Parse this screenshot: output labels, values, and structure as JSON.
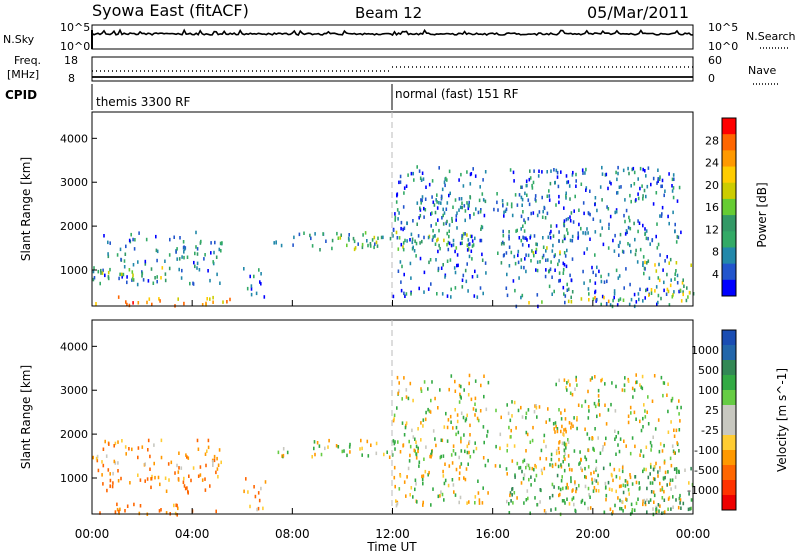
{
  "header": {
    "title": "Syowa East (fitACF)",
    "beam": "Beam 12",
    "date": "05/Mar/2011"
  },
  "status_panels": {
    "nsky_label": "N.Sky",
    "nsearch_label": "N.Search",
    "freq_label_line1": "Freq.",
    "freq_label_line2": "[MHz]",
    "nave_label": "Nave",
    "cpid_label": "CPID",
    "noise_ticks_left": [
      "10^5",
      "10^0"
    ],
    "noise_ticks_right": [
      "10^5",
      "10^0"
    ],
    "freq_ticks": [
      "18",
      "8"
    ],
    "nave_ticks": [
      "60",
      "0"
    ],
    "cpid_segments": [
      {
        "label": "themis 3300 RF",
        "start_hour": 0
      },
      {
        "label": "normal (fast) 151 RF",
        "start_hour": 12.0
      }
    ]
  },
  "x_axis": {
    "label": "Time UT",
    "ticks": [
      "00:00",
      "04:00",
      "08:00",
      "12:00",
      "16:00",
      "20:00",
      "00:00"
    ]
  },
  "chart_data": [
    {
      "type": "heatmap",
      "name": "power",
      "ylabel": "Slant Range [km]",
      "yticks": [
        1000,
        2000,
        3000,
        4000
      ],
      "ylim": [
        180,
        4600
      ],
      "xlim_hours": [
        0,
        24
      ],
      "colorbar_label": "Power [dB]",
      "colorbar_ticks": [
        "28",
        "24",
        "20",
        "16",
        "12",
        "8",
        "4"
      ],
      "colorbar_colors": [
        "#ff0000",
        "#ff6600",
        "#ff9900",
        "#ffcc00",
        "#cccc00",
        "#66cc33",
        "#339966",
        "#33aa66",
        "#2288aa",
        "#2255cc",
        "#0000ff"
      ],
      "regions": [
        {
          "t0": 0.1,
          "t1": 5.5,
          "r0": 200,
          "r1": 450,
          "mean": 26
        },
        {
          "t0": 0.0,
          "t1": 5.2,
          "r0": 700,
          "r1": 1900,
          "mean": 8
        },
        {
          "t0": 0.3,
          "t1": 3.0,
          "r0": 800,
          "r1": 1100,
          "mean": 16
        },
        {
          "t0": 6.0,
          "t1": 6.9,
          "r0": 300,
          "r1": 1100,
          "mean": 8
        },
        {
          "t0": 7.2,
          "t1": 12.0,
          "r0": 1550,
          "r1": 1900,
          "mean": 9
        },
        {
          "t0": 9.0,
          "t1": 15.5,
          "r0": 1500,
          "r1": 1900,
          "mean": 15
        },
        {
          "t0": 12.0,
          "t1": 15.8,
          "r0": 400,
          "r1": 3400,
          "mean": 7
        },
        {
          "t0": 13.0,
          "t1": 15.5,
          "r0": 1800,
          "r1": 2800,
          "mean": 9
        },
        {
          "t0": 16.0,
          "t1": 19.0,
          "r0": 1200,
          "r1": 2800,
          "mean": 8
        },
        {
          "t0": 17.5,
          "t1": 18.8,
          "r0": 1400,
          "r1": 1600,
          "mean": 20
        },
        {
          "t0": 16.5,
          "t1": 23.5,
          "r0": 200,
          "r1": 3400,
          "mean": 7
        },
        {
          "t0": 17.0,
          "t1": 21.5,
          "r0": 280,
          "r1": 420,
          "mean": 22
        },
        {
          "t0": 22.0,
          "t1": 24.0,
          "r0": 300,
          "r1": 1300,
          "mean": 18
        }
      ]
    },
    {
      "type": "heatmap",
      "name": "velocity",
      "ylabel": "Slant Range [km]",
      "yticks": [
        1000,
        2000,
        3000,
        4000
      ],
      "ylim": [
        180,
        4600
      ],
      "xlim_hours": [
        0,
        24
      ],
      "colorbar_label": "Velocity [m s^-1]",
      "colorbar_ticks": [
        "1000",
        "500",
        "100",
        "25",
        "-25",
        "-100",
        "-500",
        "-1000"
      ],
      "colorbar_colors": [
        "#1a4db3",
        "#2266aa",
        "#338855",
        "#33aa44",
        "#66cc44",
        "#c8c8c0",
        "#c8c8c0",
        "#ffcc33",
        "#ff9900",
        "#ff6600",
        "#ff3300",
        "#ee0000"
      ],
      "regions": [
        {
          "t0": 0.1,
          "t1": 5.5,
          "r0": 200,
          "r1": 450,
          "mean": -300
        },
        {
          "t0": 0.0,
          "t1": 5.2,
          "r0": 700,
          "r1": 1900,
          "mean": -250
        },
        {
          "t0": 6.0,
          "t1": 6.9,
          "r0": 300,
          "r1": 1100,
          "mean": -200
        },
        {
          "t0": 7.2,
          "t1": 15.5,
          "r0": 1500,
          "r1": 1900,
          "mean": 0
        },
        {
          "t0": 12.0,
          "t1": 15.8,
          "r0": 400,
          "r1": 3400,
          "mean": 0
        },
        {
          "t0": 16.0,
          "t1": 19.0,
          "r0": 1200,
          "r1": 2800,
          "mean": 0
        },
        {
          "t0": 16.5,
          "t1": 23.5,
          "r0": 200,
          "r1": 1300,
          "mean": 80
        },
        {
          "t0": 18.5,
          "t1": 23.5,
          "r0": 200,
          "r1": 3400,
          "mean": 0
        },
        {
          "t0": 22.0,
          "t1": 24.0,
          "r0": 300,
          "r1": 1300,
          "mean": 200
        }
      ]
    }
  ]
}
